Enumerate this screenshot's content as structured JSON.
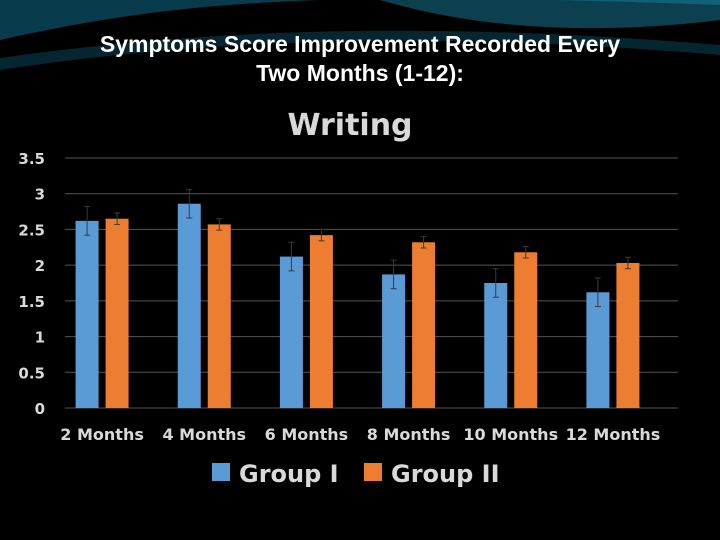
{
  "slide": {
    "title_line1": "Symptoms Score Improvement Recorded Every",
    "title_line2": "Two Months (1-12):"
  },
  "colors": {
    "background": "#000000",
    "group1": "#5b9bd5",
    "group2": "#ed7d31",
    "gridline": "#555555",
    "text": "#d9d9d9",
    "decor": "#0e6e8c"
  },
  "chart_data": {
    "type": "bar",
    "title": "Writing",
    "categories": [
      "2 Months",
      "4 Months",
      "6 Months",
      "8 Months",
      "10 Months",
      "12 Months"
    ],
    "series": [
      {
        "name": "Group I",
        "values": [
          2.62,
          2.86,
          2.12,
          1.87,
          1.75,
          1.62
        ],
        "errors": [
          0.2,
          0.2,
          0.2,
          0.2,
          0.2,
          0.2
        ],
        "color": "#5b9bd5"
      },
      {
        "name": "Group II",
        "values": [
          2.65,
          2.57,
          2.42,
          2.32,
          2.18,
          2.03
        ],
        "errors": [
          0.08,
          0.08,
          0.08,
          0.08,
          0.08,
          0.08
        ],
        "color": "#ed7d31"
      }
    ],
    "ylim": [
      0,
      3.5
    ],
    "yticks": [
      "0",
      "0.5",
      "1",
      "1.5",
      "2",
      "2.5",
      "3",
      "3.5"
    ],
    "grid": true,
    "legend": "bottom",
    "xlabel": "",
    "ylabel": ""
  }
}
